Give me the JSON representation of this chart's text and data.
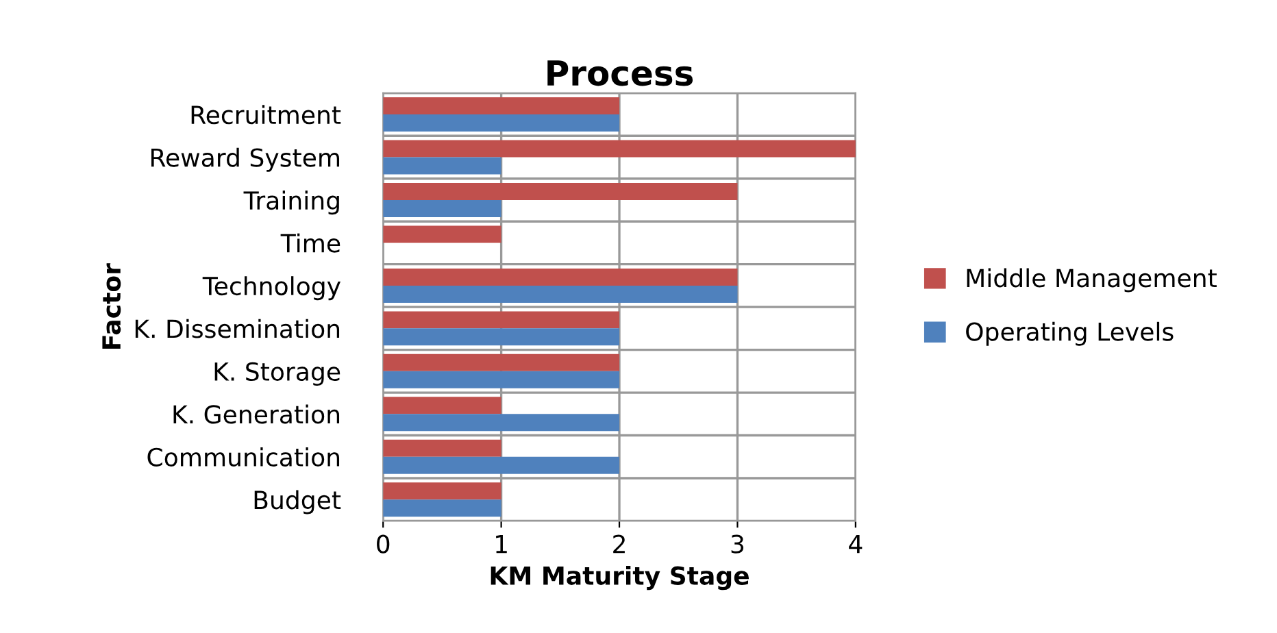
{
  "chart_data": {
    "type": "bar",
    "orientation": "horizontal",
    "title": "Process",
    "xlabel": "KM Maturity Stage",
    "ylabel": "Factor",
    "categories": [
      "Recruitment",
      "Reward System",
      "Training",
      "Time",
      "Technology",
      "K. Dissemination",
      "K. Storage",
      "K. Generation",
      "Communication",
      "Budget"
    ],
    "series": [
      {
        "name": "Middle Management",
        "color": "#c0504d",
        "values": [
          2,
          4,
          3,
          1,
          3,
          2,
          2,
          1,
          1,
          1
        ]
      },
      {
        "name": "Operating Levels",
        "color": "#4f81bd",
        "values": [
          2,
          1,
          1,
          0,
          3,
          2,
          2,
          2,
          2,
          1
        ]
      }
    ],
    "xlim": [
      0,
      4
    ],
    "xticks": [
      0,
      1,
      2,
      3,
      4
    ],
    "grid": true,
    "legend": "right"
  }
}
